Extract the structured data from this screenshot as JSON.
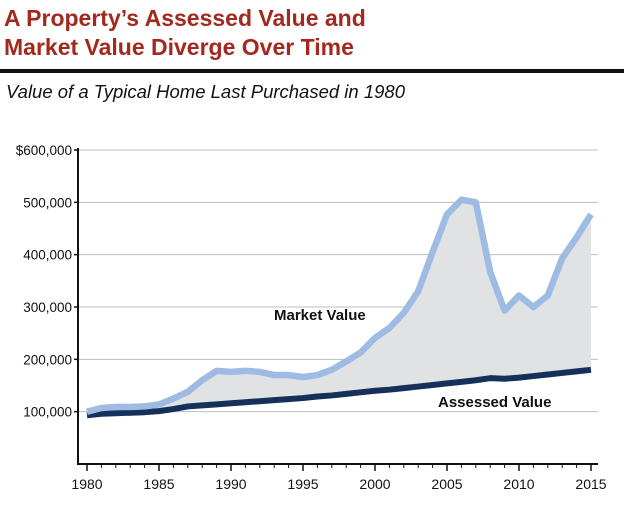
{
  "header": {
    "title_line1": "A Property’s Assessed Value and",
    "title_line2": "Market Value Diverge Over Time",
    "subtitle": "Value of a Typical Home Last Purchased in 1980"
  },
  "chart_data": {
    "type": "line",
    "title": "A Property’s Assessed Value and Market Value Diverge Over Time",
    "subtitle": "Value of a Typical Home Last Purchased in 1980",
    "x": [
      1980,
      1981,
      1982,
      1983,
      1984,
      1985,
      1986,
      1987,
      1988,
      1989,
      1990,
      1991,
      1992,
      1993,
      1994,
      1995,
      1996,
      1997,
      1998,
      1999,
      2000,
      2001,
      2002,
      2003,
      2004,
      2005,
      2006,
      2007,
      2008,
      2009,
      2010,
      2011,
      2012,
      2013,
      2014,
      2015
    ],
    "series": [
      {
        "name": "Market Value",
        "color": "#9dbbe3",
        "values": [
          100000,
          107000,
          109000,
          109000,
          110000,
          114000,
          125000,
          138000,
          160000,
          178000,
          176000,
          178000,
          176000,
          170000,
          170000,
          166000,
          170000,
          180000,
          196000,
          213000,
          241000,
          260000,
          289000,
          330000,
          405000,
          477000,
          505000,
          500000,
          367000,
          293000,
          322000,
          300000,
          322000,
          393000,
          433000,
          477000
        ]
      },
      {
        "name": "Assessed Value",
        "color": "#15305a",
        "values": [
          93000,
          96000,
          97000,
          98000,
          99000,
          101000,
          105000,
          110000,
          112000,
          114000,
          116000,
          118000,
          120000,
          122000,
          124000,
          126000,
          129000,
          131000,
          134000,
          137000,
          140000,
          142000,
          145000,
          148000,
          151000,
          154000,
          157000,
          160000,
          164000,
          163000,
          165000,
          168000,
          171000,
          174000,
          177000,
          180000
        ]
      }
    ],
    "gap_fill_color": "#e1e2e4",
    "ylim": [
      0,
      600000
    ],
    "yticks": [
      "$600,000",
      "500,000",
      "400,000",
      "300,000",
      "200,000",
      "100,000"
    ],
    "ytick_values": [
      600000,
      500000,
      400000,
      300000,
      200000,
      100000
    ],
    "xticks": [
      "1980",
      "1985",
      "1990",
      "1995",
      "2000",
      "2005",
      "2010",
      "2015"
    ],
    "xtick_values": [
      1980,
      1985,
      1990,
      1995,
      2000,
      2005,
      2010,
      2015
    ],
    "grid": true,
    "xlabel": "",
    "ylabel": ""
  }
}
